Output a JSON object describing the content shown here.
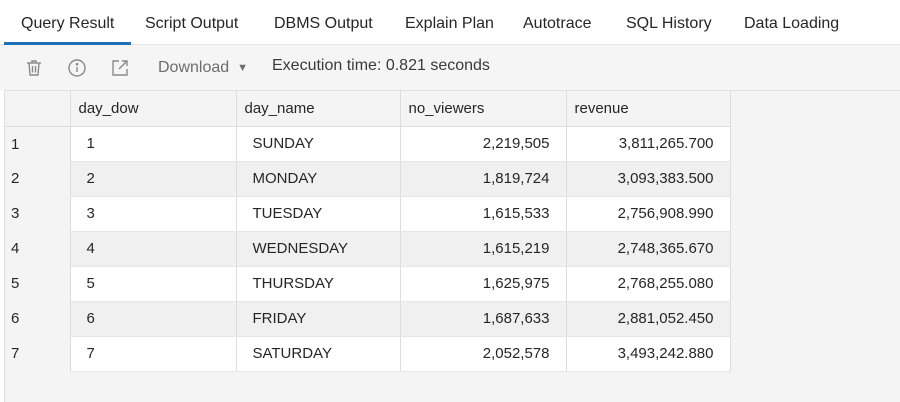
{
  "tabs": [
    {
      "label": "Query Result"
    },
    {
      "label": "Script Output"
    },
    {
      "label": "DBMS Output"
    },
    {
      "label": "Explain Plan"
    },
    {
      "label": "Autotrace"
    },
    {
      "label": "SQL History"
    },
    {
      "label": "Data Loading"
    }
  ],
  "toolbar": {
    "download_label": "Download",
    "execution_time": "Execution time: 0.821 seconds",
    "icons": [
      "trash-icon",
      "info-icon",
      "open-external-icon",
      "chevron-down-icon"
    ]
  },
  "colors": {
    "accent": "#1f6fb5"
  },
  "table": {
    "columns": [
      "day_dow",
      "day_name",
      "no_viewers",
      "revenue"
    ],
    "rows": [
      {
        "n": "1",
        "day_dow": "1",
        "day_name": "SUNDAY",
        "no_viewers": "2,219,505",
        "revenue": "3,811,265.700"
      },
      {
        "n": "2",
        "day_dow": "2",
        "day_name": "MONDAY",
        "no_viewers": "1,819,724",
        "revenue": "3,093,383.500"
      },
      {
        "n": "3",
        "day_dow": "3",
        "day_name": "TUESDAY",
        "no_viewers": "1,615,533",
        "revenue": "2,756,908.990"
      },
      {
        "n": "4",
        "day_dow": "4",
        "day_name": "WEDNESDAY",
        "no_viewers": "1,615,219",
        "revenue": "2,748,365.670"
      },
      {
        "n": "5",
        "day_dow": "5",
        "day_name": "THURSDAY",
        "no_viewers": "1,625,975",
        "revenue": "2,768,255.080"
      },
      {
        "n": "6",
        "day_dow": "6",
        "day_name": "FRIDAY",
        "no_viewers": "1,687,633",
        "revenue": "2,881,052.450"
      },
      {
        "n": "7",
        "day_dow": "7",
        "day_name": "SATURDAY",
        "no_viewers": "2,052,578",
        "revenue": "3,493,242.880"
      }
    ]
  }
}
